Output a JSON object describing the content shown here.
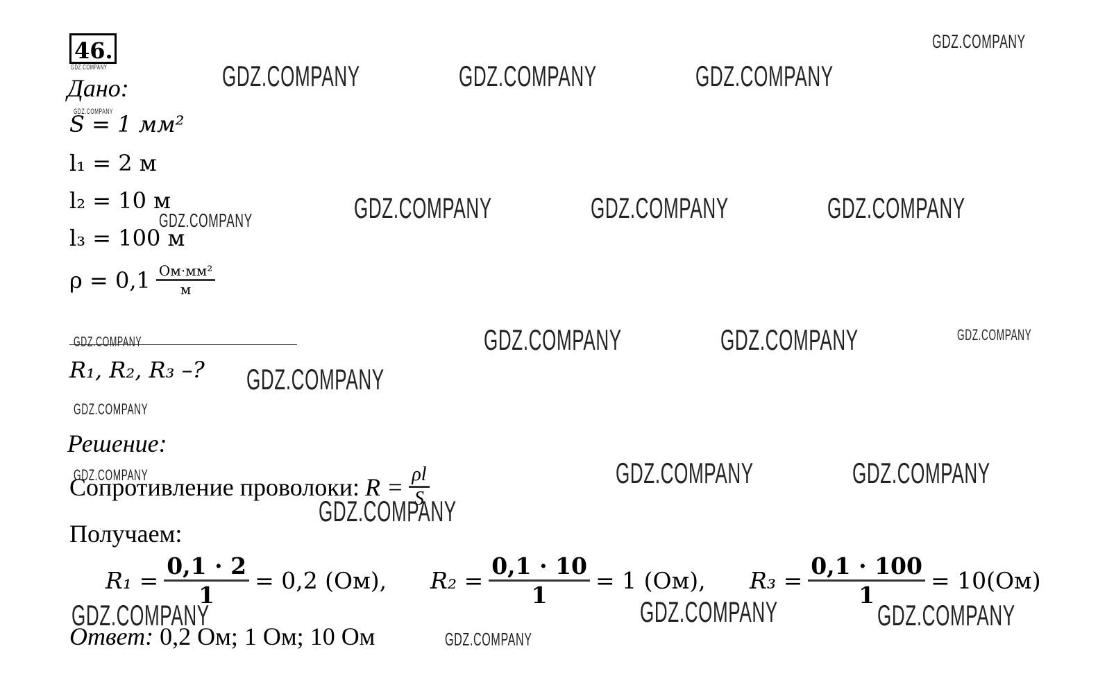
{
  "problem_number": "46.",
  "given": {
    "heading": "Дано:",
    "items": [
      "S = 1 мм²",
      "l₁ = 2 м",
      "l₂ = 10 м",
      "l₃ = 100 м"
    ],
    "rho": {
      "lhs": "ρ = 0,1",
      "num": "Ом·мм²",
      "den": "м"
    }
  },
  "find": "R₁, R₂, R₃ –?",
  "solution": {
    "heading": "Решение:",
    "formula": {
      "text": "Сопротивление проволоки:",
      "lhs": "R =",
      "num": "ρl",
      "den": "S"
    },
    "intro": "Получаем:",
    "equations": [
      {
        "lhs": "R₁ =",
        "num": "0,1 · 2",
        "den": "1",
        "rhs": "= 0,2 (Ом),"
      },
      {
        "lhs": "R₂ =",
        "num": "0,1 · 10",
        "den": "1",
        "rhs": "= 1 (Ом),"
      },
      {
        "lhs": "R₃ =",
        "num": "0,1 · 100",
        "den": "1",
        "rhs": "= 10(Ом)"
      }
    ]
  },
  "answer": {
    "label": "Ответ:",
    "text": "0,2 Ом; 1 Ом; 10 Ом"
  },
  "watermark": "GDZ.COMPANY"
}
